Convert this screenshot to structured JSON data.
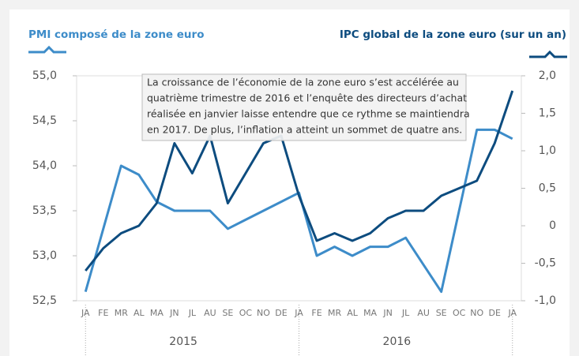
{
  "chart_data": {
    "type": "line",
    "legend_left": "PMI composé de la zone euro",
    "legend_right": "IPC global de la zone euro (sur un an)",
    "annotation": [
      "La croissance de l’économie de la zone euro s’est accélérée au",
      "quatrième trimestre de 2016 et l’enquête des directeurs d’achat",
      "réalisée en janvier laisse entendre que ce rythme se maintiendra",
      "en 2017. De plus, l’inflation a atteint un sommet de quatre ans."
    ],
    "categories": [
      "JA",
      "FE",
      "MR",
      "AL",
      "MA",
      "JN",
      "JL",
      "AU",
      "SE",
      "OC",
      "NO",
      "DE",
      "JA",
      "FE",
      "MR",
      "AL",
      "MA",
      "JN",
      "JL",
      "AU",
      "SE",
      "OC",
      "NO",
      "DE",
      "JA"
    ],
    "years": [
      "2015",
      "2016"
    ],
    "series": [
      {
        "name": "PMI composé de la zone euro",
        "color": "#3d8cc9",
        "axis": "y",
        "values": [
          52.6,
          53.3,
          54.0,
          53.9,
          53.6,
          53.5,
          53.5,
          53.5,
          53.3,
          53.4,
          53.5,
          53.6,
          53.7,
          53.0,
          53.1,
          53.0,
          53.1,
          53.1,
          53.2,
          52.9,
          52.6,
          53.5,
          54.4,
          54.4,
          54.3
        ]
      },
      {
        "name": "IPC global de la zone euro (sur un an)",
        "color": "#0d4c7f",
        "axis": "y2",
        "values": [
          -0.6,
          -0.3,
          -0.1,
          0.0,
          0.3,
          1.1,
          0.7,
          1.2,
          0.3,
          0.7,
          1.1,
          1.2,
          0.4,
          -0.2,
          -0.1,
          -0.2,
          -0.1,
          0.1,
          0.2,
          0.2,
          0.4,
          0.5,
          0.6,
          1.1,
          1.8
        ]
      }
    ],
    "ylim": [
      52.5,
      55.0
    ],
    "yticks": [
      {
        "value": 52.5,
        "label": "52,5"
      },
      {
        "value": 53.0,
        "label": "53,0"
      },
      {
        "value": 53.5,
        "label": "53,5"
      },
      {
        "value": 54.0,
        "label": "54,0"
      },
      {
        "value": 54.5,
        "label": "54,5"
      },
      {
        "value": 55.0,
        "label": "55,0"
      }
    ],
    "y2lim": [
      -1.0,
      2.0
    ],
    "y2ticks": [
      {
        "value": -1.0,
        "label": "-1,0"
      },
      {
        "value": -0.5,
        "label": "-0,5"
      },
      0,
      {
        "value": 0.5,
        "label": "0,5"
      },
      {
        "value": 1.0,
        "label": "1,0"
      },
      {
        "value": 1.5,
        "label": "1,5"
      },
      {
        "value": 2.0,
        "label": "2,0"
      }
    ]
  }
}
